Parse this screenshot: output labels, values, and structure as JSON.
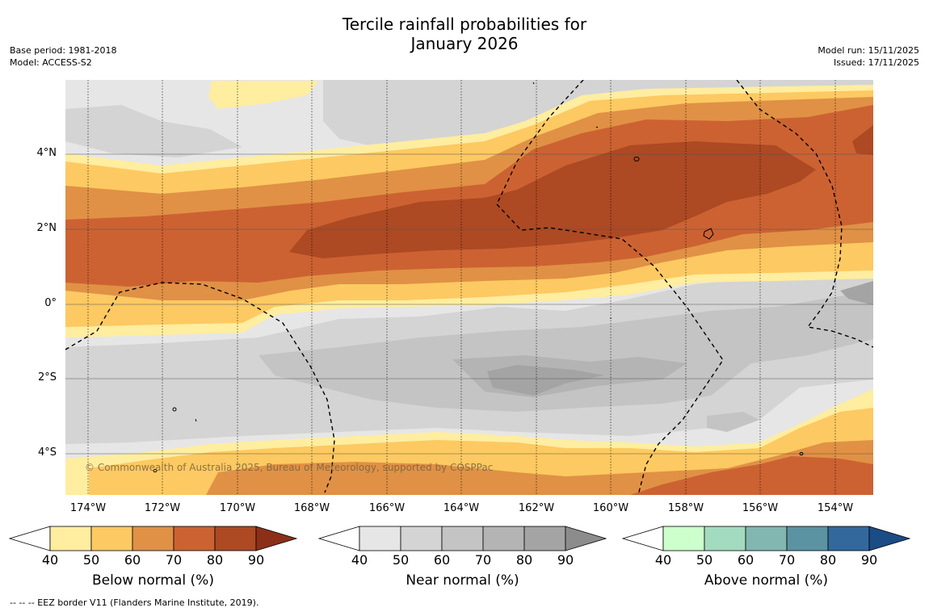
{
  "title_line1": "Tercile rainfall probabilities for",
  "title_line2": "January 2026",
  "meta": {
    "base_period": "Base period: 1981-2018",
    "model": "Model: ACCESS-S2",
    "model_run": "Model run: 15/11/2025",
    "issued": "Issued: 17/11/2025"
  },
  "map": {
    "lat_labels": [
      "4°N",
      "2°N",
      "0°",
      "2°S",
      "4°S"
    ],
    "lon_labels": [
      "174°W",
      "172°W",
      "170°W",
      "168°W",
      "166°W",
      "164°W",
      "162°W",
      "160°W",
      "158°W",
      "156°W",
      "154°W"
    ],
    "copyright": "© Commonwealth of Australia 2025, Bureau of Meteorology, supported by COSPPac"
  },
  "colorbars": [
    {
      "label": "Below normal (%)",
      "ticks": [
        "40",
        "50",
        "60",
        "70",
        "80",
        "90"
      ],
      "colors": [
        "#ffeda0",
        "#fdc962",
        "#e09145",
        "#cc6232",
        "#ad4923",
        "#8c2f18"
      ]
    },
    {
      "label": "Near normal (%)",
      "ticks": [
        "40",
        "50",
        "60",
        "70",
        "80",
        "90"
      ],
      "colors": [
        "#e6e6e6",
        "#d4d4d4",
        "#c4c4c4",
        "#b4b4b4",
        "#a4a4a4",
        "#8c8c8c"
      ]
    },
    {
      "label": "Above normal (%)",
      "ticks": [
        "40",
        "50",
        "60",
        "70",
        "80",
        "90"
      ],
      "colors": [
        "#ccffcc",
        "#a3dbc0",
        "#82b6b0",
        "#5b93a2",
        "#33689c",
        "#1a4c86"
      ]
    }
  ],
  "footnote": "--  --  -- EEZ border V11 (Flanders Marine Institute, 2019)."
}
